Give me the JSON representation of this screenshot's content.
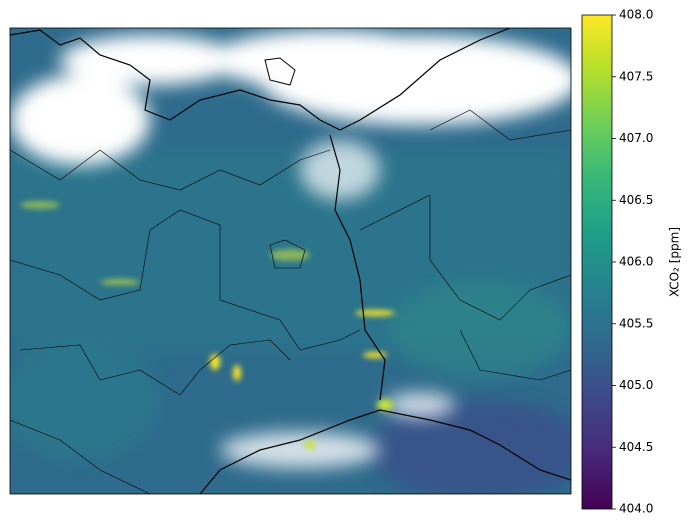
{
  "colorbar": {
    "label": "XCO₂ [ppm]",
    "range": [
      404,
      408
    ],
    "ticks": [
      {
        "value": 404,
        "label": "404.0"
      },
      {
        "value": 404.5,
        "label": "404.5"
      },
      {
        "value": 405,
        "label": "405.0"
      },
      {
        "value": 405.5,
        "label": "405.5"
      },
      {
        "value": 406,
        "label": "406.0"
      },
      {
        "value": 406.5,
        "label": "406.5"
      },
      {
        "value": 407,
        "label": "407.0"
      },
      {
        "value": 407.5,
        "label": "407.5"
      },
      {
        "value": 408,
        "label": "408.0"
      }
    ],
    "colors": [
      "#440154",
      "#482878",
      "#3e4989",
      "#31688e",
      "#26828e",
      "#1f9e89",
      "#35b779",
      "#6ece58",
      "#b5de2b",
      "#fde725"
    ]
  }
}
